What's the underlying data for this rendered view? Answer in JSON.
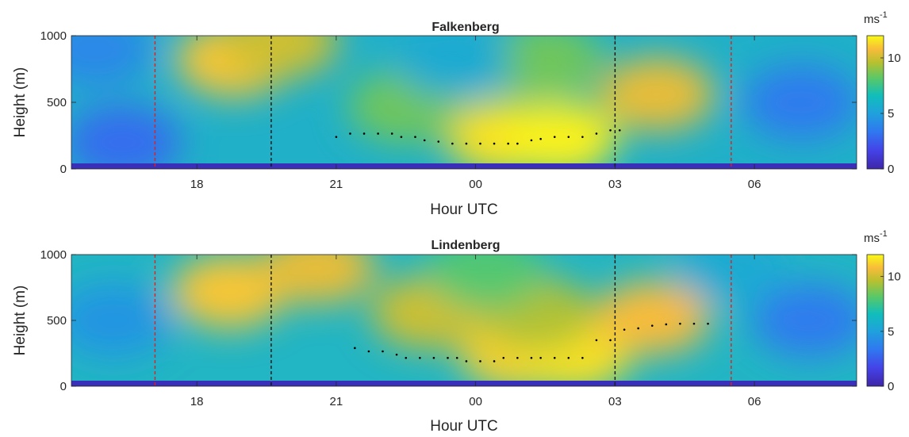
{
  "chart_data": [
    {
      "type": "heatmap",
      "title": "Falkenberg",
      "xlabel": "Hour UTC",
      "ylabel": "Height (m)",
      "xlim": [
        15.3,
        32.2
      ],
      "ylim": [
        0,
        1000
      ],
      "x_ticks": [
        {
          "value": 18,
          "label": "18"
        },
        {
          "value": 21,
          "label": "21"
        },
        {
          "value": 24,
          "label": "00"
        },
        {
          "value": 27,
          "label": "03"
        },
        {
          "value": 30,
          "label": "06"
        }
      ],
      "y_ticks": [
        {
          "value": 0,
          "label": "0"
        },
        {
          "value": 500,
          "label": "500"
        },
        {
          "value": 1000,
          "label": "1000"
        }
      ],
      "colorbar": {
        "label": "ms",
        "label_exponent": "-1",
        "range": [
          0,
          12
        ],
        "ticks": [
          {
            "value": 0,
            "label": "0"
          },
          {
            "value": 5,
            "label": "5"
          },
          {
            "value": 10,
            "label": "10"
          }
        ]
      },
      "red_lines": [
        17.1,
        29.5
      ],
      "black_lines": [
        19.6,
        27.0
      ],
      "jet_core_points": [
        [
          21.0,
          240
        ],
        [
          21.3,
          265
        ],
        [
          21.6,
          265
        ],
        [
          21.9,
          265
        ],
        [
          22.2,
          265
        ],
        [
          22.4,
          240
        ],
        [
          22.7,
          240
        ],
        [
          22.9,
          215
        ],
        [
          23.2,
          205
        ],
        [
          23.5,
          190
        ],
        [
          23.8,
          190
        ],
        [
          24.1,
          190
        ],
        [
          24.4,
          190
        ],
        [
          24.7,
          190
        ],
        [
          24.9,
          190
        ],
        [
          25.2,
          215
        ],
        [
          25.4,
          225
        ],
        [
          25.7,
          240
        ],
        [
          26.0,
          240
        ],
        [
          26.3,
          240
        ],
        [
          26.6,
          265
        ],
        [
          26.9,
          290
        ],
        [
          27.1,
          290
        ]
      ],
      "wind_speed_blobs": [
        {
          "x": 18.8,
          "y": 820,
          "value": 11
        },
        {
          "x": 19.8,
          "y": 960,
          "value": 10
        },
        {
          "x": 24.6,
          "y": 240,
          "value": 11.5
        },
        {
          "x": 25.8,
          "y": 230,
          "value": 11.8
        },
        {
          "x": 27.9,
          "y": 560,
          "value": 10.5
        },
        {
          "x": 22.5,
          "y": 470,
          "value": 8.5
        },
        {
          "x": 25.5,
          "y": 820,
          "value": 8.5
        },
        {
          "x": 16.4,
          "y": 200,
          "value": 3
        },
        {
          "x": 31.0,
          "y": 500,
          "value": 3.5
        },
        {
          "x": 15.8,
          "y": 900,
          "value": 4
        },
        {
          "x": 23.5,
          "y": 820,
          "value": 5.5
        }
      ]
    },
    {
      "type": "heatmap",
      "title": "Lindenberg",
      "xlabel": "Hour UTC",
      "ylabel": "Height (m)",
      "xlim": [
        15.3,
        32.2
      ],
      "ylim": [
        0,
        1000
      ],
      "x_ticks": [
        {
          "value": 18,
          "label": "18"
        },
        {
          "value": 21,
          "label": "21"
        },
        {
          "value": 24,
          "label": "00"
        },
        {
          "value": 27,
          "label": "03"
        },
        {
          "value": 30,
          "label": "06"
        }
      ],
      "y_ticks": [
        {
          "value": 0,
          "label": "0"
        },
        {
          "value": 500,
          "label": "500"
        },
        {
          "value": 1000,
          "label": "1000"
        }
      ],
      "colorbar": {
        "label": "ms",
        "label_exponent": "-1",
        "range": [
          0,
          12
        ],
        "ticks": [
          {
            "value": 0,
            "label": "0"
          },
          {
            "value": 5,
            "label": "5"
          },
          {
            "value": 10,
            "label": "10"
          }
        ]
      },
      "red_lines": [
        17.1,
        29.5
      ],
      "black_lines": [
        19.6,
        27.0
      ],
      "jet_core_points": [
        [
          21.4,
          290
        ],
        [
          21.7,
          265
        ],
        [
          22.0,
          265
        ],
        [
          22.3,
          240
        ],
        [
          22.5,
          215
        ],
        [
          22.8,
          215
        ],
        [
          23.1,
          215
        ],
        [
          23.4,
          215
        ],
        [
          23.6,
          215
        ],
        [
          23.8,
          190
        ],
        [
          24.1,
          190
        ],
        [
          24.4,
          190
        ],
        [
          24.6,
          215
        ],
        [
          24.9,
          215
        ],
        [
          25.2,
          215
        ],
        [
          25.4,
          215
        ],
        [
          25.7,
          215
        ],
        [
          26.0,
          215
        ],
        [
          26.3,
          215
        ],
        [
          26.6,
          350
        ],
        [
          26.9,
          350
        ],
        [
          27.2,
          430
        ],
        [
          27.5,
          440
        ],
        [
          27.8,
          460
        ],
        [
          28.1,
          470
        ],
        [
          28.4,
          475
        ],
        [
          28.7,
          475
        ],
        [
          29.0,
          475
        ]
      ],
      "wind_speed_blobs": [
        {
          "x": 18.7,
          "y": 720,
          "value": 11
        },
        {
          "x": 20.6,
          "y": 900,
          "value": 10.5
        },
        {
          "x": 24.9,
          "y": 250,
          "value": 11.2
        },
        {
          "x": 26.1,
          "y": 240,
          "value": 11.5
        },
        {
          "x": 27.8,
          "y": 520,
          "value": 10.8
        },
        {
          "x": 23.0,
          "y": 560,
          "value": 10
        },
        {
          "x": 25.3,
          "y": 550,
          "value": 9.5
        },
        {
          "x": 24.2,
          "y": 870,
          "value": 8
        },
        {
          "x": 16.2,
          "y": 500,
          "value": 4.5
        },
        {
          "x": 31.2,
          "y": 500,
          "value": 3.5
        },
        {
          "x": 29.5,
          "y": 900,
          "value": 5.5
        }
      ]
    }
  ]
}
